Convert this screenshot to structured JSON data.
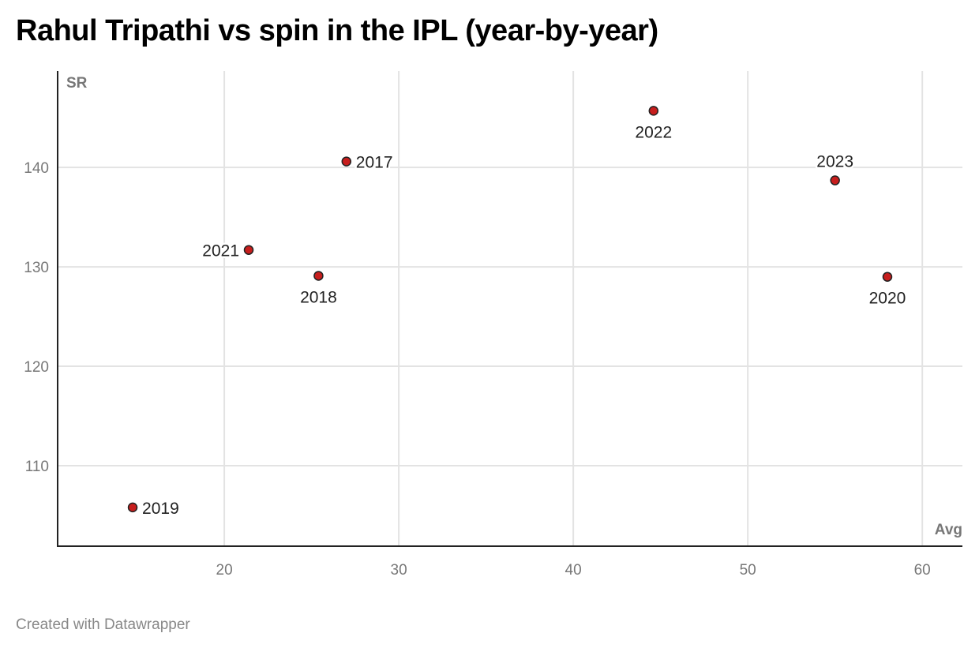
{
  "title": "Rahul Tripathi vs spin in the IPL (year-by-year)",
  "footer": "Created with Datawrapper",
  "chart_data": {
    "type": "scatter",
    "title": "Rahul Tripathi vs spin in the IPL (year-by-year)",
    "xlabel": "Avg",
    "ylabel": "SR",
    "xlim": [
      10.45,
      62.3
    ],
    "ylim": [
      101.9,
      149.7
    ],
    "xticks": [
      20,
      30,
      40,
      50,
      60
    ],
    "yticks": [
      110,
      120,
      130,
      140
    ],
    "grid": true,
    "point_color": "#c71e1d",
    "points": [
      {
        "label": "2017",
        "x": 27.0,
        "y": 140.6,
        "label_pos": "right"
      },
      {
        "label": "2018",
        "x": 25.4,
        "y": 129.1,
        "label_pos": "below"
      },
      {
        "label": "2019",
        "x": 14.75,
        "y": 105.8,
        "label_pos": "right"
      },
      {
        "label": "2020",
        "x": 58.0,
        "y": 129.0,
        "label_pos": "below"
      },
      {
        "label": "2021",
        "x": 21.4,
        "y": 131.7,
        "label_pos": "left"
      },
      {
        "label": "2022",
        "x": 44.6,
        "y": 145.7,
        "label_pos": "below"
      },
      {
        "label": "2023",
        "x": 55.0,
        "y": 138.7,
        "label_pos": "above"
      }
    ]
  }
}
